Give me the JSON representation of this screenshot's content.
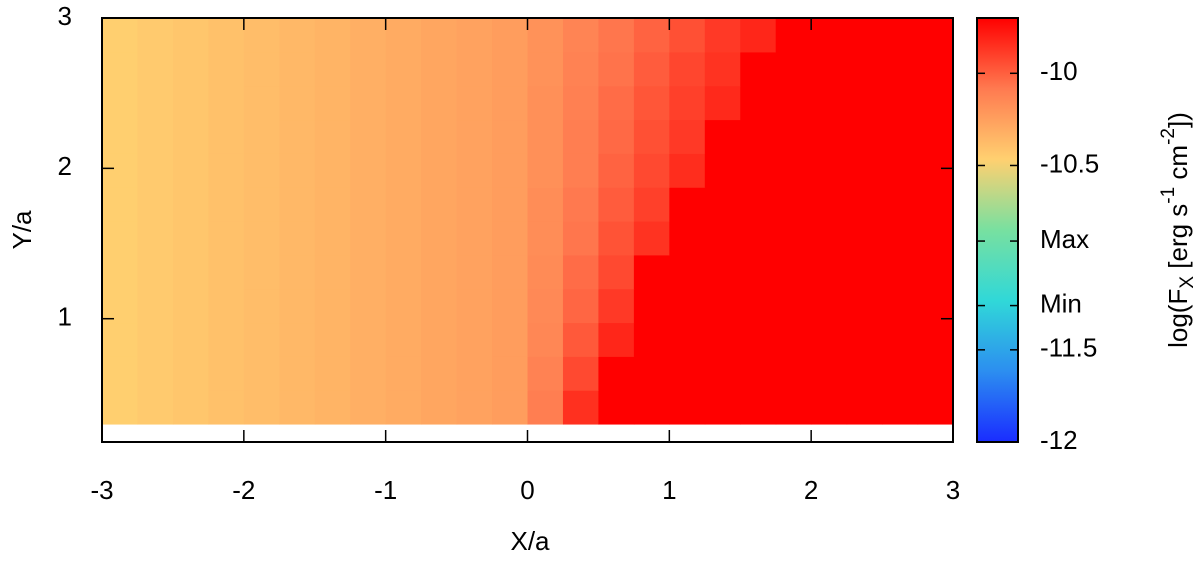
{
  "chart_data": {
    "type": "heatmap",
    "xlabel": "X/a",
    "ylabel": "Y/a",
    "colorbar_label": [
      "log(F",
      "X",
      " [erg s",
      "-1",
      " cm",
      "-2",
      "])"
    ],
    "xlim": [
      -3,
      3
    ],
    "xticks": [
      -3,
      -2,
      -1,
      0,
      1,
      2,
      3
    ],
    "ylim": [
      0.18,
      3
    ],
    "yticks": [
      1,
      2,
      3
    ],
    "zlim": [
      -12,
      -9.7
    ],
    "zticks": [
      -12,
      -11.5,
      {
        "value": -11.26,
        "label": "Min"
      },
      {
        "value": -10.91,
        "label": "Max"
      },
      -10.5,
      -10
    ],
    "colors": [
      "#1a2cff",
      "#2c8ef0",
      "#30d8d8",
      "#78e0a0",
      "#ffd070",
      "#ff7a50",
      "#ff0000"
    ],
    "x_edges": [
      -3,
      -2.75,
      -2.5,
      -2.25,
      -2,
      -1.75,
      -1.5,
      -1.25,
      -1,
      -0.75,
      -0.5,
      -0.25,
      0,
      0.25,
      0.5,
      0.75,
      1,
      1.25,
      1.5,
      1.75,
      2,
      2.25,
      2.5,
      2.75,
      3
    ],
    "y_edges": [
      0.3,
      0.525,
      0.75,
      0.975,
      1.2,
      1.425,
      1.65,
      1.875,
      2.1,
      2.325,
      2.55,
      2.775,
      3
    ],
    "z": [
      [
        -10.46,
        -10.44,
        -10.42,
        -10.4,
        -10.38,
        -10.36,
        -10.34,
        -10.32,
        -10.3,
        -10.28,
        -10.26,
        -10.24,
        -10.1,
        -9.85,
        -9.7,
        -9.7,
        -9.7,
        -9.7,
        -9.7,
        -9.7,
        -9.7,
        -9.7,
        -9.7,
        -9.7
      ],
      [
        -10.46,
        -10.44,
        -10.42,
        -10.4,
        -10.38,
        -10.36,
        -10.34,
        -10.32,
        -10.3,
        -10.28,
        -10.26,
        -10.24,
        -10.12,
        -9.93,
        -9.7,
        -9.7,
        -9.7,
        -9.7,
        -9.7,
        -9.7,
        -9.7,
        -9.7,
        -9.7,
        -9.7
      ],
      [
        -10.46,
        -10.44,
        -10.42,
        -10.4,
        -10.38,
        -10.36,
        -10.34,
        -10.32,
        -10.3,
        -10.28,
        -10.26,
        -10.24,
        -10.14,
        -9.98,
        -9.82,
        -9.7,
        -9.7,
        -9.7,
        -9.7,
        -9.7,
        -9.7,
        -9.7,
        -9.7,
        -9.7
      ],
      [
        -10.46,
        -10.44,
        -10.42,
        -10.4,
        -10.38,
        -10.36,
        -10.34,
        -10.32,
        -10.3,
        -10.28,
        -10.26,
        -10.24,
        -10.15,
        -10.02,
        -9.88,
        -9.7,
        -9.7,
        -9.7,
        -9.7,
        -9.7,
        -9.7,
        -9.7,
        -9.7,
        -9.7
      ],
      [
        -10.46,
        -10.44,
        -10.42,
        -10.4,
        -10.38,
        -10.36,
        -10.34,
        -10.32,
        -10.3,
        -10.28,
        -10.26,
        -10.24,
        -10.16,
        -10.04,
        -9.93,
        -9.7,
        -9.7,
        -9.7,
        -9.7,
        -9.7,
        -9.7,
        -9.7,
        -9.7,
        -9.7
      ],
      [
        -10.46,
        -10.44,
        -10.42,
        -10.4,
        -10.38,
        -10.36,
        -10.34,
        -10.32,
        -10.3,
        -10.28,
        -10.26,
        -10.24,
        -10.17,
        -10.07,
        -9.96,
        -9.86,
        -9.7,
        -9.7,
        -9.7,
        -9.7,
        -9.7,
        -9.7,
        -9.7,
        -9.7
      ],
      [
        -10.46,
        -10.44,
        -10.42,
        -10.4,
        -10.38,
        -10.36,
        -10.34,
        -10.32,
        -10.3,
        -10.28,
        -10.26,
        -10.24,
        -10.17,
        -10.08,
        -9.99,
        -9.9,
        -9.7,
        -9.7,
        -9.7,
        -9.7,
        -9.7,
        -9.7,
        -9.7,
        -9.7
      ],
      [
        -10.46,
        -10.44,
        -10.42,
        -10.4,
        -10.38,
        -10.36,
        -10.34,
        -10.32,
        -10.3,
        -10.28,
        -10.26,
        -10.24,
        -10.18,
        -10.1,
        -10.01,
        -9.93,
        -9.84,
        -9.7,
        -9.7,
        -9.7,
        -9.7,
        -9.7,
        -9.7,
        -9.7
      ],
      [
        -10.46,
        -10.44,
        -10.42,
        -10.4,
        -10.38,
        -10.36,
        -10.34,
        -10.32,
        -10.3,
        -10.28,
        -10.26,
        -10.24,
        -10.18,
        -10.1,
        -10.03,
        -9.95,
        -9.88,
        -9.7,
        -9.7,
        -9.7,
        -9.7,
        -9.7,
        -9.7,
        -9.7
      ],
      [
        -10.46,
        -10.44,
        -10.42,
        -10.4,
        -10.38,
        -10.36,
        -10.34,
        -10.32,
        -10.3,
        -10.28,
        -10.26,
        -10.24,
        -10.18,
        -10.11,
        -10.04,
        -9.97,
        -9.9,
        -9.83,
        -9.7,
        -9.7,
        -9.7,
        -9.7,
        -9.7,
        -9.7
      ],
      [
        -10.46,
        -10.44,
        -10.42,
        -10.4,
        -10.38,
        -10.36,
        -10.34,
        -10.32,
        -10.3,
        -10.28,
        -10.26,
        -10.24,
        -10.19,
        -10.12,
        -10.06,
        -9.99,
        -9.92,
        -9.86,
        -9.7,
        -9.7,
        -9.7,
        -9.7,
        -9.7,
        -9.7
      ],
      [
        -10.46,
        -10.44,
        -10.42,
        -10.4,
        -10.38,
        -10.36,
        -10.34,
        -10.32,
        -10.3,
        -10.28,
        -10.26,
        -10.24,
        -10.19,
        -10.13,
        -10.07,
        -10.01,
        -9.95,
        -9.88,
        -9.82,
        -9.7,
        -9.7,
        -9.7,
        -9.7,
        -9.7
      ]
    ]
  }
}
